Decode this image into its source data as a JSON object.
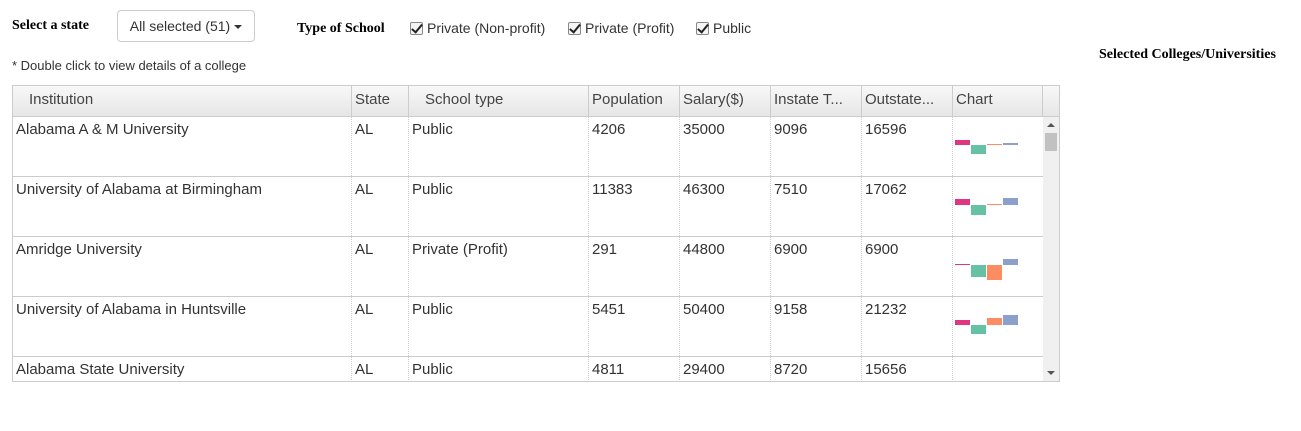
{
  "controls": {
    "state_label": "Select a state",
    "state_dropdown_value": "All selected (51)",
    "type_label": "Type of School",
    "types": [
      {
        "label": "Private (Non-profit)",
        "checked": true
      },
      {
        "label": "Private (Profit)",
        "checked": true
      },
      {
        "label": "Public",
        "checked": true
      }
    ],
    "note": "* Double click to view details of a college"
  },
  "selected_panel": {
    "title": "Selected Colleges/Universities"
  },
  "grid": {
    "columns": [
      "Institution",
      "State",
      "School type",
      "Population",
      "Salary($)",
      "Instate T...",
      "Outstate...",
      "Chart"
    ],
    "rows": [
      {
        "institution": "Alabama A & M University",
        "state": "AL",
        "type": "Public",
        "population": "4206",
        "salary": "35000",
        "instate": "9096",
        "outstate": "16596"
      },
      {
        "institution": "University of Alabama at Birmingham",
        "state": "AL",
        "type": "Public",
        "population": "11383",
        "salary": "46300",
        "instate": "7510",
        "outstate": "17062"
      },
      {
        "institution": "Amridge University",
        "state": "AL",
        "type": "Private (Profit)",
        "population": "291",
        "salary": "44800",
        "instate": "6900",
        "outstate": "6900"
      },
      {
        "institution": "University of Alabama in Huntsville",
        "state": "AL",
        "type": "Public",
        "population": "5451",
        "salary": "50400",
        "instate": "9158",
        "outstate": "21232"
      },
      {
        "institution": "Alabama State University",
        "state": "AL",
        "type": "Public",
        "population": "4811",
        "salary": "29400",
        "instate": "8720",
        "outstate": "15656"
      }
    ]
  },
  "chart_data": {
    "type": "bar",
    "note": "per-row sparkline bars, signed values (relative to baseline) read visually",
    "colors": [
      "#e0357f",
      "#66c2a5",
      "#fc8d62",
      "#8da0cb"
    ],
    "rows": [
      {
        "values": [
          0.5,
          -0.9,
          0.1,
          0.2
        ]
      },
      {
        "values": [
          0.6,
          -1.0,
          0.1,
          0.7
        ]
      },
      {
        "values": [
          0.1,
          -1.2,
          -1.5,
          0.6
        ]
      },
      {
        "values": [
          0.5,
          -0.9,
          0.7,
          1.0
        ]
      },
      {
        "values": [
          0,
          0,
          0,
          0
        ]
      }
    ]
  },
  "scrollbar": {
    "up_icon": "arrow-up-icon",
    "down_icon": "arrow-down-icon"
  }
}
